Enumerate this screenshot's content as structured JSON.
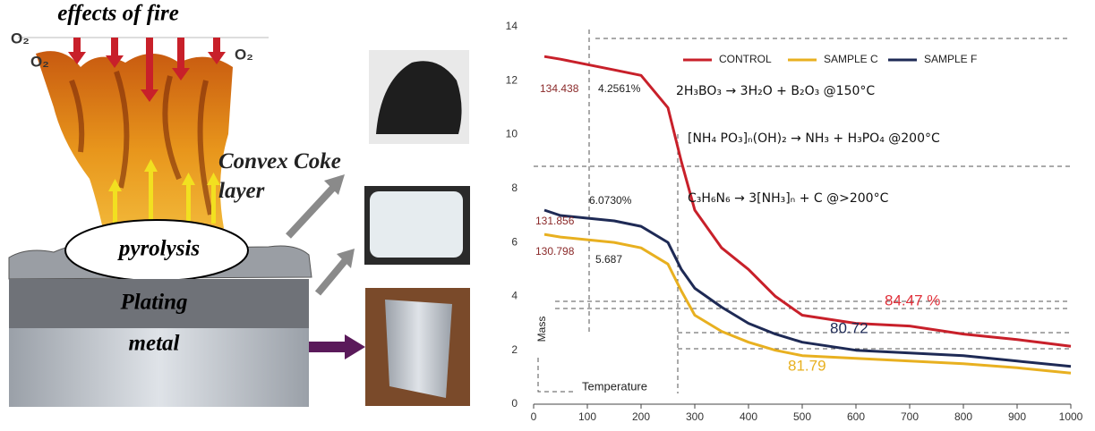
{
  "diagram": {
    "title": "effects of fire",
    "oxygen_labels": [
      "O₂",
      "O₂",
      "O₂"
    ],
    "coke_label": "Convex Coke layer",
    "pyrolysis_label": "pyrolysis",
    "plating_label": "Plating",
    "metal_label": "metal"
  },
  "chart_data": {
    "type": "line",
    "x": [
      20,
      50,
      100,
      150,
      200,
      250,
      275,
      300,
      350,
      400,
      450,
      500,
      600,
      700,
      800,
      900,
      1000
    ],
    "series": [
      {
        "name": "CONTROL",
        "color": "#c8202a",
        "values": [
          12.9,
          12.8,
          12.6,
          12.4,
          12.2,
          11.0,
          9.0,
          7.2,
          5.8,
          5.0,
          4.0,
          3.3,
          3.0,
          2.9,
          2.6,
          2.4,
          2.15
        ]
      },
      {
        "name": "SAMPLE C",
        "color": "#e8b020",
        "values": [
          6.3,
          6.2,
          6.1,
          6.0,
          5.8,
          5.2,
          4.2,
          3.3,
          2.7,
          2.3,
          2.0,
          1.8,
          1.7,
          1.6,
          1.5,
          1.35,
          1.15
        ]
      },
      {
        "name": "SAMPLE F",
        "color": "#1e2a55",
        "values": [
          7.2,
          7.0,
          6.9,
          6.8,
          6.6,
          6.0,
          5.0,
          4.3,
          3.6,
          3.0,
          2.6,
          2.3,
          2.0,
          1.9,
          1.8,
          1.6,
          1.4
        ]
      }
    ],
    "xlim": [
      0,
      1000
    ],
    "xticks": [
      0,
      100,
      200,
      300,
      400,
      500,
      600,
      700,
      800,
      900,
      1000
    ],
    "ylim": [
      0,
      14
    ],
    "yticks": [
      0,
      2,
      4,
      6,
      8,
      10,
      12,
      14
    ],
    "annotations": [
      "134.438",
      "4.2561%",
      "2H₃BO₃ → 3H₂O + B₂O₃   @150°C",
      "[NH₄ PO₃]ₙ(OH)₂ → NH₃ + H₃PO₄   @200°C",
      "C₃H₆N₆ → 3[NH₃]ₙ + C   @>200°C",
      "6.0730%",
      "131.856",
      "130.798",
      "5.687",
      "84.47 %",
      "80.72",
      "81.79",
      "Mass",
      "Temperature"
    ]
  }
}
